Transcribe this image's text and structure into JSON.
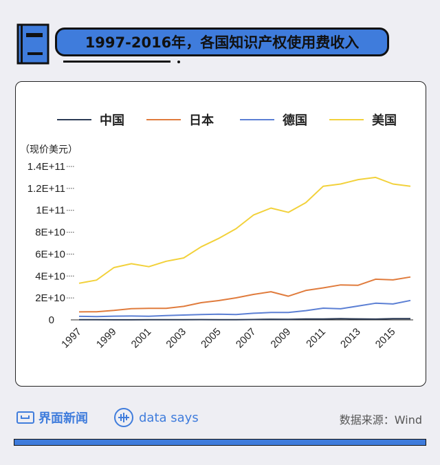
{
  "header": {
    "title": "1997-2016年，各国知识产权使用费收入"
  },
  "chart_data": {
    "type": "line",
    "title": "1997-2016年，各国知识产权使用费收入",
    "ylabel": "（现价美元）",
    "x": [
      1997,
      1998,
      1999,
      2000,
      2001,
      2002,
      2003,
      2004,
      2005,
      2006,
      2007,
      2008,
      2009,
      2010,
      2011,
      2012,
      2013,
      2014,
      2015,
      2016
    ],
    "xticks": [
      "1997",
      "1999",
      "2001",
      "2003",
      "2005",
      "2007",
      "2009",
      "2011",
      "2013",
      "2015"
    ],
    "yticks": [
      {
        "value": 0,
        "label": "0"
      },
      {
        "value": 20000000000,
        "label": "2E+10"
      },
      {
        "value": 40000000000,
        "label": "4E+10"
      },
      {
        "value": 60000000000,
        "label": "6E+10"
      },
      {
        "value": 80000000000,
        "label": "8E+10"
      },
      {
        "value": 100000000000,
        "label": "1E+11"
      },
      {
        "value": 120000000000,
        "label": "1.2E+11"
      },
      {
        "value": 140000000000,
        "label": "1.4E+11"
      }
    ],
    "ylim": [
      0,
      140000000000
    ],
    "legend_position": "top",
    "series": [
      {
        "name": "中国",
        "color": "#2b3a55",
        "values": [
          100000000.0,
          150000000.0,
          70000000.0,
          80000000.0,
          110000000.0,
          130000000.0,
          110000000.0,
          240000000.0,
          160000000.0,
          200000000.0,
          340000000.0,
          570000000.0,
          430000000.0,
          830000000.0,
          740000000.0,
          1040000000.0,
          890000000.0,
          680000000.0,
          1080000000.0,
          1160000000.0
        ]
      },
      {
        "name": "日本",
        "color": "#e07b3c",
        "values": [
          7300000000.0,
          7400000000.0,
          8600000000.0,
          10200000000.0,
          10500000000.0,
          10500000000.0,
          12300000000.0,
          15700000000.0,
          17600000000.0,
          20100000000.0,
          23200000000.0,
          25700000000.0,
          21600000000.0,
          26800000000.0,
          29200000000.0,
          31900000000.0,
          31600000000.0,
          37100000000.0,
          36500000000.0,
          39100000000.0
        ]
      },
      {
        "name": "德国",
        "color": "#5b7fd4",
        "values": [
          3200000000.0,
          3000000000.0,
          3400000000.0,
          3500000000.0,
          3300000000.0,
          3900000000.0,
          4400000000.0,
          4900000000.0,
          5200000000.0,
          4900000000.0,
          6000000000.0,
          6700000000.0,
          6800000000.0,
          8400000000.0,
          10700000000.0,
          10100000000.0,
          12600000000.0,
          15200000000.0,
          14500000000.0,
          17700000000.0
        ]
      },
      {
        "name": "美国",
        "color": "#f2d13a",
        "values": [
          33400000000.0,
          36300000000.0,
          47700000000.0,
          51200000000.0,
          48500000000.0,
          53500000000.0,
          56500000000.0,
          66700000000.0,
          74300000000.0,
          83200000000.0,
          95700000000.0,
          102000000000.0,
          98100000000.0,
          107000000000.0,
          122000000000.0,
          124000000000.0,
          128000000000.0,
          130000000000.0,
          124000000000.0,
          122000000000.0
        ]
      }
    ]
  },
  "footer": {
    "brand": "界面新闻",
    "datasays": "data says",
    "source": "数据来源：Wind"
  }
}
